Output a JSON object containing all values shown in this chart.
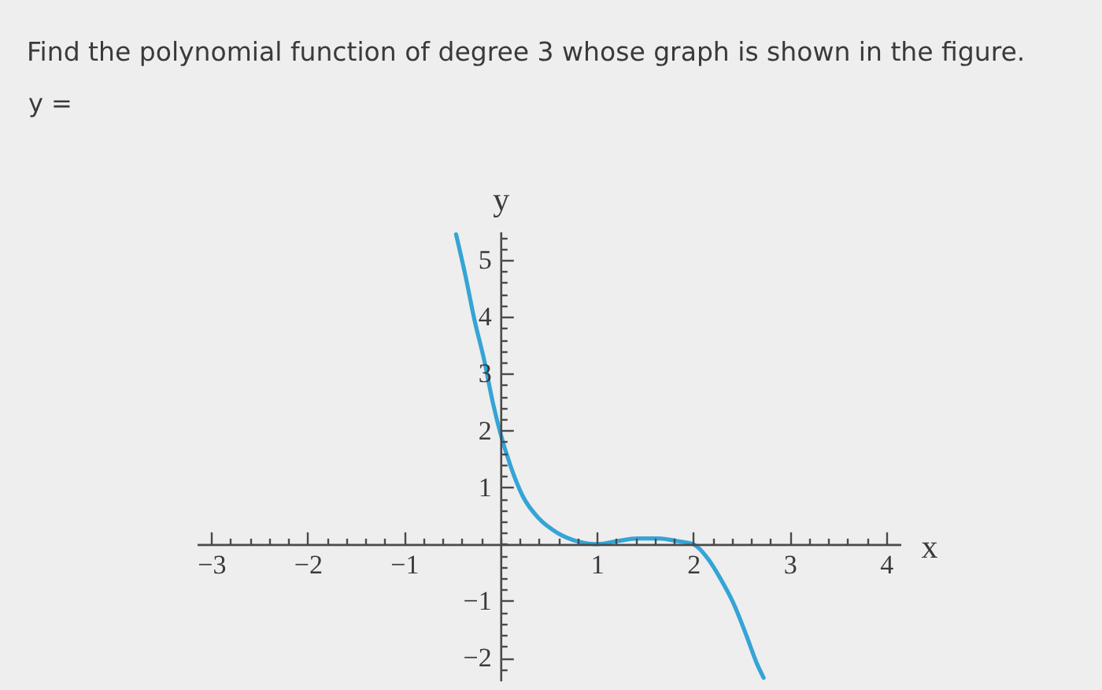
{
  "chart_data": {
    "type": "line",
    "title": "Find the polynomial function of degree 3 whose graph is shown in the figure.",
    "annotations": [
      "y ="
    ],
    "xlabel": "x",
    "ylabel": "y",
    "x": [
      -0.46,
      -0.36,
      -0.27,
      -0.17,
      -0.08,
      0,
      0.1,
      0.23,
      0.4,
      0.59,
      0.8,
      1.0,
      1.2,
      1.42,
      1.64,
      1.85,
      2.0,
      2.15,
      2.28,
      2.42,
      2.55,
      2.66,
      2.73
    ],
    "series": [
      {
        "color": "#35a4d6",
        "values": [
          5.45,
          4.7,
          3.95,
          3.25,
          2.5,
          1.95,
          1.4,
          0.85,
          0.45,
          0.2,
          0.05,
          0,
          0.05,
          0.1,
          0.1,
          0.05,
          0,
          -0.25,
          -0.6,
          -1.05,
          -1.6,
          -2.1,
          -2.35
        ]
      }
    ],
    "xlim": [
      -3.15,
      4.15
    ],
    "ylim": [
      -2.4,
      5.5
    ],
    "xticks": [
      -3,
      {
        "value": -2.8,
        "label": null
      },
      {
        "value": -2.6,
        "label": null
      },
      {
        "value": -2.4,
        "label": null
      },
      {
        "value": -2.2,
        "label": null
      },
      -2,
      {
        "value": -1.8,
        "label": null
      },
      {
        "value": -1.6,
        "label": null
      },
      {
        "value": -1.4,
        "label": null
      },
      {
        "value": -1.2,
        "label": null
      },
      -1,
      {
        "value": -0.8,
        "label": null
      },
      {
        "value": -0.6,
        "label": null
      },
      {
        "value": -0.4,
        "label": null
      },
      {
        "value": -0.2,
        "label": null
      },
      {
        "value": 0,
        "label": null
      },
      {
        "value": 0.2,
        "label": null
      },
      {
        "value": 0.4,
        "label": null
      },
      {
        "value": 0.6,
        "label": null
      },
      {
        "value": 0.8,
        "label": null
      },
      1,
      {
        "value": 1.2,
        "label": null
      },
      {
        "value": 1.4,
        "label": null
      },
      {
        "value": 1.6,
        "label": null
      },
      {
        "value": 1.8,
        "label": null
      },
      2,
      {
        "value": 2.2,
        "label": null
      },
      {
        "value": 2.4,
        "label": null
      },
      {
        "value": 2.6,
        "label": null
      },
      {
        "value": 2.8,
        "label": null
      },
      3,
      {
        "value": 3.2,
        "label": null
      },
      {
        "value": 3.4,
        "label": null
      },
      {
        "value": 3.6,
        "label": null
      },
      {
        "value": 3.8,
        "label": null
      },
      4
    ],
    "yticks": [
      {
        "value": -2.2,
        "label": null
      },
      -2,
      {
        "value": -1.8,
        "label": null
      },
      {
        "value": -1.6,
        "label": null
      },
      {
        "value": -1.4,
        "label": null
      },
      {
        "value": -1.2,
        "label": null
      },
      -1,
      {
        "value": -0.8,
        "label": null
      },
      {
        "value": -0.6,
        "label": null
      },
      {
        "value": -0.4,
        "label": null
      },
      {
        "value": -0.2,
        "label": null
      },
      {
        "value": 0,
        "label": null
      },
      {
        "value": 0.2,
        "label": null
      },
      {
        "value": 0.4,
        "label": null
      },
      {
        "value": 0.6,
        "label": null
      },
      {
        "value": 0.8,
        "label": null
      },
      1,
      {
        "value": 1.2,
        "label": null
      },
      {
        "value": 1.4,
        "label": null
      },
      {
        "value": 1.6,
        "label": null
      },
      {
        "value": 1.8,
        "label": null
      },
      2,
      {
        "value": 2.2,
        "label": null
      },
      {
        "value": 2.4,
        "label": null
      },
      {
        "value": 2.6,
        "label": null
      },
      {
        "value": 2.8,
        "label": null
      },
      3,
      {
        "value": 3.2,
        "label": null
      },
      {
        "value": 3.4,
        "label": null
      },
      {
        "value": 3.6,
        "label": null
      },
      {
        "value": 3.8,
        "label": null
      },
      4,
      {
        "value": 4.2,
        "label": null
      },
      {
        "value": 4.4,
        "label": null
      },
      {
        "value": 4.6,
        "label": null
      },
      {
        "value": 4.8,
        "label": null
      },
      5,
      {
        "value": 5.2,
        "label": null
      },
      {
        "value": 5.4,
        "label": null
      }
    ]
  }
}
